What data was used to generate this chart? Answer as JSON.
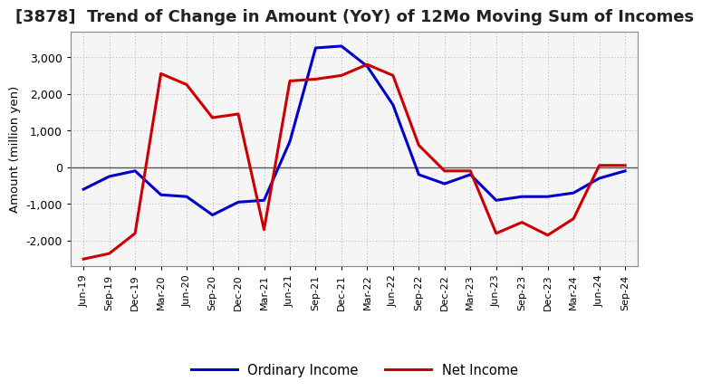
{
  "title": "[3878]  Trend of Change in Amount (YoY) of 12Mo Moving Sum of Incomes",
  "ylabel": "Amount (million yen)",
  "x_labels": [
    "Jun-19",
    "Sep-19",
    "Dec-19",
    "Mar-20",
    "Jun-20",
    "Sep-20",
    "Dec-20",
    "Mar-21",
    "Jun-21",
    "Sep-21",
    "Dec-21",
    "Mar-22",
    "Jun-22",
    "Sep-22",
    "Dec-22",
    "Mar-23",
    "Jun-23",
    "Sep-23",
    "Dec-23",
    "Mar-24",
    "Jun-24",
    "Sep-24"
  ],
  "ordinary_income": [
    -600,
    -250,
    -100,
    -750,
    -800,
    -1300,
    -950,
    -900,
    700,
    3250,
    3300,
    2750,
    1700,
    -200,
    -450,
    -200,
    -900,
    -800,
    -800,
    -700,
    -300,
    -100
  ],
  "net_income": [
    -2500,
    -2350,
    -1800,
    2550,
    2250,
    1350,
    1450,
    -1700,
    2350,
    2400,
    2500,
    2800,
    2500,
    600,
    -100,
    -100,
    -1800,
    -1500,
    -1850,
    -1400,
    50,
    50
  ],
  "ordinary_income_color": "#0000CC",
  "net_income_color": "#CC0000",
  "ylim": [
    -2700,
    3700
  ],
  "yticks": [
    -2000,
    -1000,
    0,
    1000,
    2000,
    3000
  ],
  "background_color": "#FFFFFF",
  "plot_bg_color": "#F5F5F5",
  "grid_color": "#999999",
  "title_fontsize": 13,
  "axis_fontsize": 9.5,
  "tick_fontsize": 9,
  "legend_fontsize": 10.5,
  "line_width": 2.2
}
